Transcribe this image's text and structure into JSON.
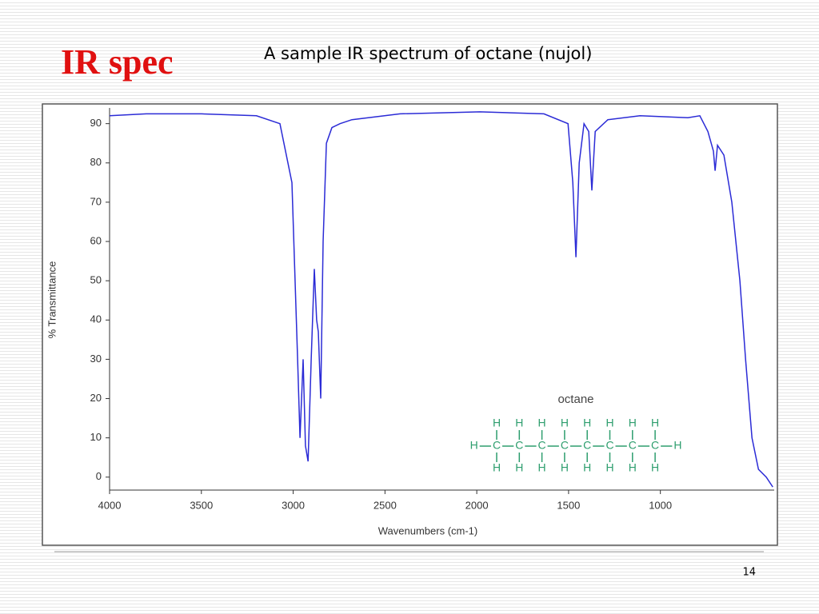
{
  "slide": {
    "title": "IR spec",
    "subtitle": "A sample IR spectrum of octane (nujol)",
    "page_number": "14"
  },
  "structure": {
    "name": "octane",
    "left_h": "H",
    "right_h": "H",
    "carbons": [
      "C",
      "C",
      "C",
      "C",
      "C",
      "C",
      "C",
      "C"
    ],
    "hydrogens_top": [
      "H",
      "H",
      "H",
      "H",
      "H",
      "H",
      "H",
      "H"
    ],
    "hydrogens_bottom": [
      "H",
      "H",
      "H",
      "H",
      "H",
      "H",
      "H",
      "H"
    ]
  },
  "chart_data": {
    "type": "line",
    "x_label": "Wavenumbers (cm-1)",
    "y_label": "% Transmittance",
    "color": "#2b2bd6",
    "xlim": [
      4000,
      380
    ],
    "ylim": [
      -3.3,
      94
    ],
    "xticks": [
      4000,
      3500,
      3000,
      2500,
      2000,
      1500,
      1000
    ],
    "yticks": [
      0,
      10,
      20,
      30,
      40,
      50,
      60,
      70,
      80,
      90
    ],
    "x": [
      4000,
      3800,
      3500,
      3200,
      3072,
      3007,
      2976,
      2963,
      2946,
      2933,
      2919,
      2902,
      2885,
      2872,
      2863,
      2850,
      2837,
      2819,
      2789,
      2745,
      2680,
      2418,
      1983,
      1634,
      1503,
      1477,
      1460,
      1442,
      1416,
      1390,
      1373,
      1355,
      1286,
      1111,
      850,
      785,
      741,
      711,
      702,
      689,
      654,
      611,
      567,
      536,
      501,
      466,
      423,
      388
    ],
    "values": [
      92,
      92.5,
      92.5,
      92,
      90,
      75,
      30,
      10,
      30,
      8,
      4,
      30,
      53,
      40,
      37,
      20,
      60,
      85,
      89,
      90,
      91,
      92.5,
      93,
      92.5,
      90,
      75,
      56,
      80,
      90,
      88,
      73,
      88,
      91,
      92,
      91.5,
      92,
      88,
      83,
      78,
      84.5,
      82,
      70,
      50,
      30,
      10,
      2,
      0,
      -2.5
    ]
  }
}
